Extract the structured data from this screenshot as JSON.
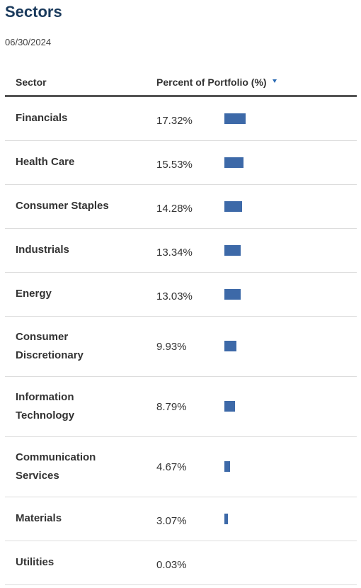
{
  "title": "Sectors",
  "date": "06/30/2024",
  "colors": {
    "bar": "#3d69a8",
    "title": "#1a3a5c",
    "sort_arrow": "#2a6ab3"
  },
  "table": {
    "columns": [
      "Sector",
      "Percent of Portfolio (%)"
    ],
    "sort_indicator": "sort-descending-icon"
  },
  "chart_data": {
    "type": "bar",
    "categories": [
      "Financials",
      "Health Care",
      "Consumer Staples",
      "Industrials",
      "Energy",
      "Consumer Discretionary",
      "Information Technology",
      "Communication Services",
      "Materials",
      "Utilities"
    ],
    "values": [
      17.32,
      15.53,
      14.28,
      13.34,
      13.03,
      9.93,
      8.79,
      4.67,
      3.07,
      0.03
    ],
    "value_labels": [
      "17.32%",
      "15.53%",
      "14.28%",
      "13.34%",
      "13.03%",
      "9.93%",
      "8.79%",
      "4.67%",
      "3.07%",
      "0.03%"
    ],
    "ylabel": "Percent of Portfolio (%)"
  }
}
